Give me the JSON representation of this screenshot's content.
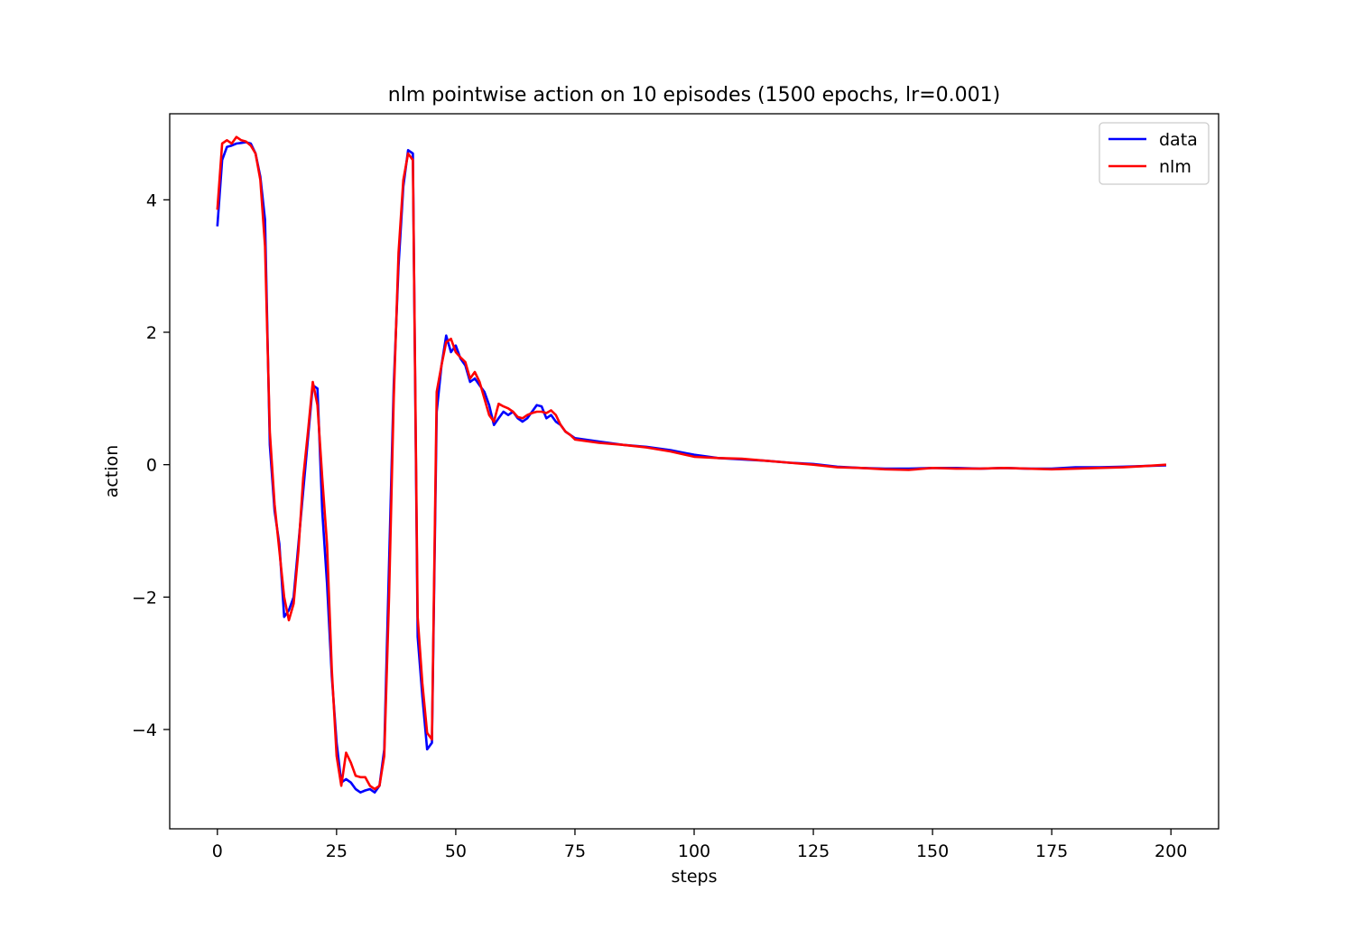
{
  "chart_data": {
    "type": "line",
    "title": "nlm pointwise action on 10 episodes (1500 epochs, lr=0.001)",
    "xlabel": "steps",
    "ylabel": "action",
    "xlim": [
      -10,
      210
    ],
    "ylim": [
      -5.5,
      5.3
    ],
    "xticks": [
      0,
      25,
      50,
      75,
      100,
      125,
      150,
      175,
      200
    ],
    "yticks": [
      -4,
      -2,
      0,
      2,
      4
    ],
    "grid": false,
    "legend_position": "top-right",
    "series": [
      {
        "name": "data",
        "color": "#0000ff",
        "x": [
          0,
          1,
          2,
          3,
          4,
          5,
          6,
          7,
          8,
          9,
          10,
          11,
          12,
          13,
          14,
          15,
          16,
          17,
          18,
          19,
          20,
          21,
          22,
          23,
          24,
          25,
          26,
          27,
          28,
          29,
          30,
          31,
          32,
          33,
          34,
          35,
          36,
          37,
          38,
          39,
          40,
          41,
          42,
          43,
          44,
          45,
          46,
          47,
          48,
          49,
          50,
          51,
          52,
          53,
          54,
          55,
          56,
          57,
          58,
          59,
          60,
          61,
          62,
          63,
          64,
          65,
          66,
          67,
          68,
          69,
          70,
          71,
          72,
          73,
          74,
          75,
          80,
          85,
          90,
          95,
          100,
          105,
          110,
          115,
          120,
          125,
          130,
          135,
          140,
          145,
          150,
          155,
          160,
          165,
          170,
          175,
          180,
          185,
          190,
          195,
          199
        ],
        "y": [
          3.6,
          4.6,
          4.8,
          4.82,
          4.85,
          4.86,
          4.87,
          4.85,
          4.7,
          4.35,
          3.7,
          0.3,
          -0.7,
          -1.2,
          -2.3,
          -2.2,
          -2.0,
          -1.2,
          -0.4,
          0.4,
          1.2,
          1.15,
          -0.7,
          -1.8,
          -3.2,
          -4.2,
          -4.8,
          -4.75,
          -4.8,
          -4.9,
          -4.95,
          -4.92,
          -4.9,
          -4.95,
          -4.85,
          -4.3,
          -1.5,
          1.2,
          3.0,
          4.2,
          4.75,
          4.7,
          -2.6,
          -3.5,
          -4.3,
          -4.2,
          0.8,
          1.5,
          1.95,
          1.7,
          1.8,
          1.6,
          1.5,
          1.25,
          1.3,
          1.2,
          1.1,
          0.9,
          0.6,
          0.7,
          0.8,
          0.75,
          0.8,
          0.7,
          0.65,
          0.7,
          0.8,
          0.9,
          0.88,
          0.7,
          0.75,
          0.65,
          0.6,
          0.5,
          0.45,
          0.4,
          0.35,
          0.3,
          0.27,
          0.22,
          0.15,
          0.1,
          0.08,
          0.06,
          0.03,
          0.01,
          -0.03,
          -0.05,
          -0.06,
          -0.06,
          -0.05,
          -0.05,
          -0.06,
          -0.05,
          -0.06,
          -0.06,
          -0.04,
          -0.04,
          -0.03,
          -0.02,
          -0.01
        ]
      },
      {
        "name": "nlm",
        "color": "#ff0000",
        "x": [
          0,
          1,
          2,
          3,
          4,
          5,
          6,
          7,
          8,
          9,
          10,
          11,
          12,
          13,
          14,
          15,
          16,
          17,
          18,
          19,
          20,
          21,
          22,
          23,
          24,
          25,
          26,
          27,
          28,
          29,
          30,
          31,
          32,
          33,
          34,
          35,
          36,
          37,
          38,
          39,
          40,
          41,
          42,
          43,
          44,
          45,
          46,
          47,
          48,
          49,
          50,
          51,
          52,
          53,
          54,
          55,
          56,
          57,
          58,
          59,
          60,
          61,
          62,
          63,
          64,
          65,
          66,
          67,
          68,
          69,
          70,
          71,
          72,
          73,
          74,
          75,
          80,
          85,
          90,
          95,
          100,
          105,
          110,
          115,
          120,
          125,
          130,
          135,
          140,
          145,
          150,
          155,
          160,
          165,
          170,
          175,
          180,
          185,
          190,
          195,
          199
        ],
        "y": [
          3.85,
          4.85,
          4.9,
          4.85,
          4.95,
          4.9,
          4.88,
          4.82,
          4.7,
          4.3,
          3.3,
          0.5,
          -0.6,
          -1.3,
          -2.0,
          -2.35,
          -2.1,
          -1.3,
          -0.2,
          0.5,
          1.25,
          0.9,
          -0.2,
          -1.2,
          -3.1,
          -4.4,
          -4.85,
          -4.35,
          -4.5,
          -4.7,
          -4.72,
          -4.72,
          -4.85,
          -4.9,
          -4.85,
          -4.4,
          -2.0,
          1.0,
          3.2,
          4.3,
          4.7,
          4.6,
          -2.3,
          -3.3,
          -4.05,
          -4.15,
          1.1,
          1.5,
          1.85,
          1.9,
          1.7,
          1.62,
          1.55,
          1.3,
          1.4,
          1.25,
          1.0,
          0.75,
          0.65,
          0.92,
          0.88,
          0.85,
          0.8,
          0.72,
          0.7,
          0.75,
          0.78,
          0.8,
          0.8,
          0.78,
          0.82,
          0.75,
          0.6,
          0.5,
          0.45,
          0.38,
          0.33,
          0.3,
          0.26,
          0.2,
          0.12,
          0.1,
          0.09,
          0.06,
          0.03,
          0.0,
          -0.04,
          -0.05,
          -0.07,
          -0.08,
          -0.05,
          -0.06,
          -0.06,
          -0.05,
          -0.06,
          -0.07,
          -0.06,
          -0.05,
          -0.04,
          -0.02,
          0.0
        ]
      }
    ]
  }
}
